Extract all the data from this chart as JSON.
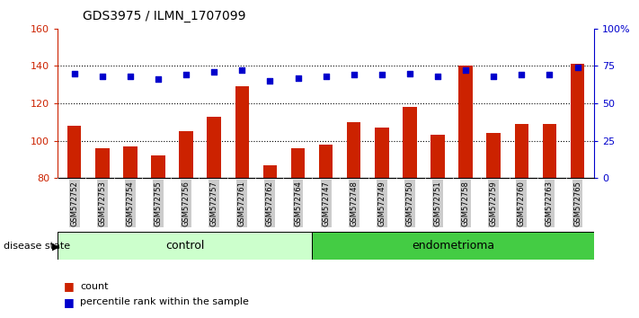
{
  "title": "GDS3975 / ILMN_1707099",
  "samples": [
    "GSM572752",
    "GSM572753",
    "GSM572754",
    "GSM572755",
    "GSM572756",
    "GSM572757",
    "GSM572761",
    "GSM572762",
    "GSM572764",
    "GSM572747",
    "GSM572748",
    "GSM572749",
    "GSM572750",
    "GSM572751",
    "GSM572758",
    "GSM572759",
    "GSM572760",
    "GSM572763",
    "GSM572765"
  ],
  "counts": [
    108,
    96,
    97,
    92,
    105,
    113,
    129,
    87,
    96,
    98,
    110,
    107,
    118,
    103,
    140,
    104,
    109,
    109,
    141
  ],
  "percentiles": [
    70,
    68,
    68,
    66,
    69,
    71,
    72,
    65,
    67,
    68,
    69,
    69,
    70,
    68,
    72,
    68,
    69,
    69,
    74
  ],
  "control_count": 9,
  "endometrioma_count": 10,
  "ylim_left": [
    80,
    160
  ],
  "ylim_right": [
    0,
    100
  ],
  "yticks_left": [
    80,
    100,
    120,
    140,
    160
  ],
  "yticks_right": [
    0,
    25,
    50,
    75,
    100
  ],
  "ytick_labels_right": [
    "0",
    "25",
    "50",
    "75",
    "100%"
  ],
  "bar_color": "#cc2200",
  "dot_color": "#0000cc",
  "control_color": "#ccffcc",
  "endometrioma_color": "#44cc44",
  "sample_bg_color": "#cccccc",
  "bar_width": 0.5
}
